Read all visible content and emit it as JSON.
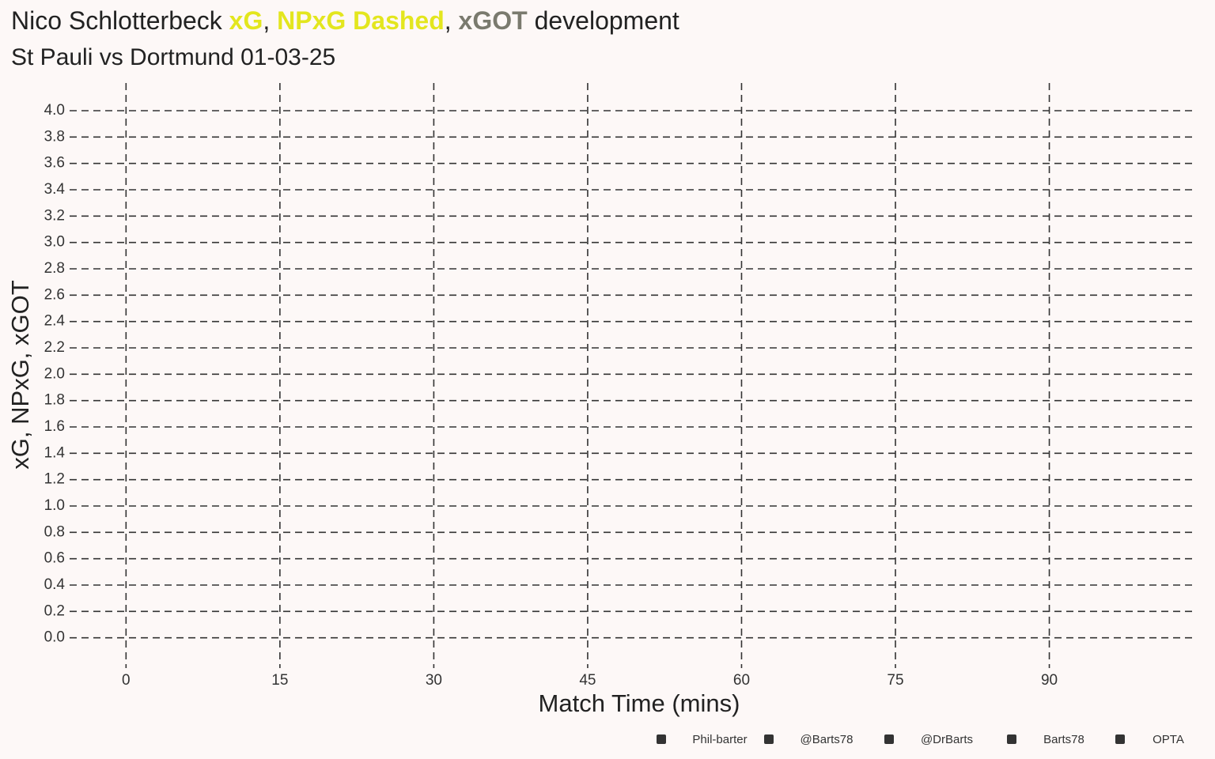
{
  "chart_data": {
    "type": "line",
    "title_parts": [
      {
        "text": "Nico Schlotterbeck ",
        "color": "#222222",
        "weight": "normal"
      },
      {
        "text": "xG",
        "color": "#e3e61e",
        "weight": "bold"
      },
      {
        "text": ", ",
        "color": "#222222",
        "weight": "normal"
      },
      {
        "text": "NPxG Dashed",
        "color": "#e3e61e",
        "weight": "bold"
      },
      {
        "text": ", ",
        "color": "#222222",
        "weight": "normal"
      },
      {
        "text": "xGOT",
        "color": "#7a7a6e",
        "weight": "bold"
      },
      {
        "text": " development",
        "color": "#222222",
        "weight": "normal"
      }
    ],
    "subtitle": "St Pauli vs Dortmund 01-03-25",
    "x_label": "Match Time (mins)",
    "y_label": "xG, NPxG, xGOT",
    "xlim": [
      -5.5,
      104.3
    ],
    "xticks": [
      0,
      15,
      30,
      45,
      60,
      75,
      90
    ],
    "ylim": [
      -0.23,
      4.21
    ],
    "yticks": [
      {
        "value": 0,
        "label": "0.0"
      },
      0.2,
      0.4,
      0.6,
      0.8,
      {
        "value": 1,
        "label": "1.0"
      },
      1.2,
      1.4,
      1.6,
      1.8,
      {
        "value": 2,
        "label": "2.0"
      },
      2.2,
      2.4,
      2.6,
      2.8,
      {
        "value": 3,
        "label": "3.0"
      },
      3.2,
      3.4,
      3.6,
      3.8,
      {
        "value": 4,
        "label": "4.0"
      }
    ],
    "grid": true,
    "credits": [
      "Phil-barter",
      "@Barts78",
      "@DrBarts",
      "Barts78",
      "OPTA"
    ]
  }
}
